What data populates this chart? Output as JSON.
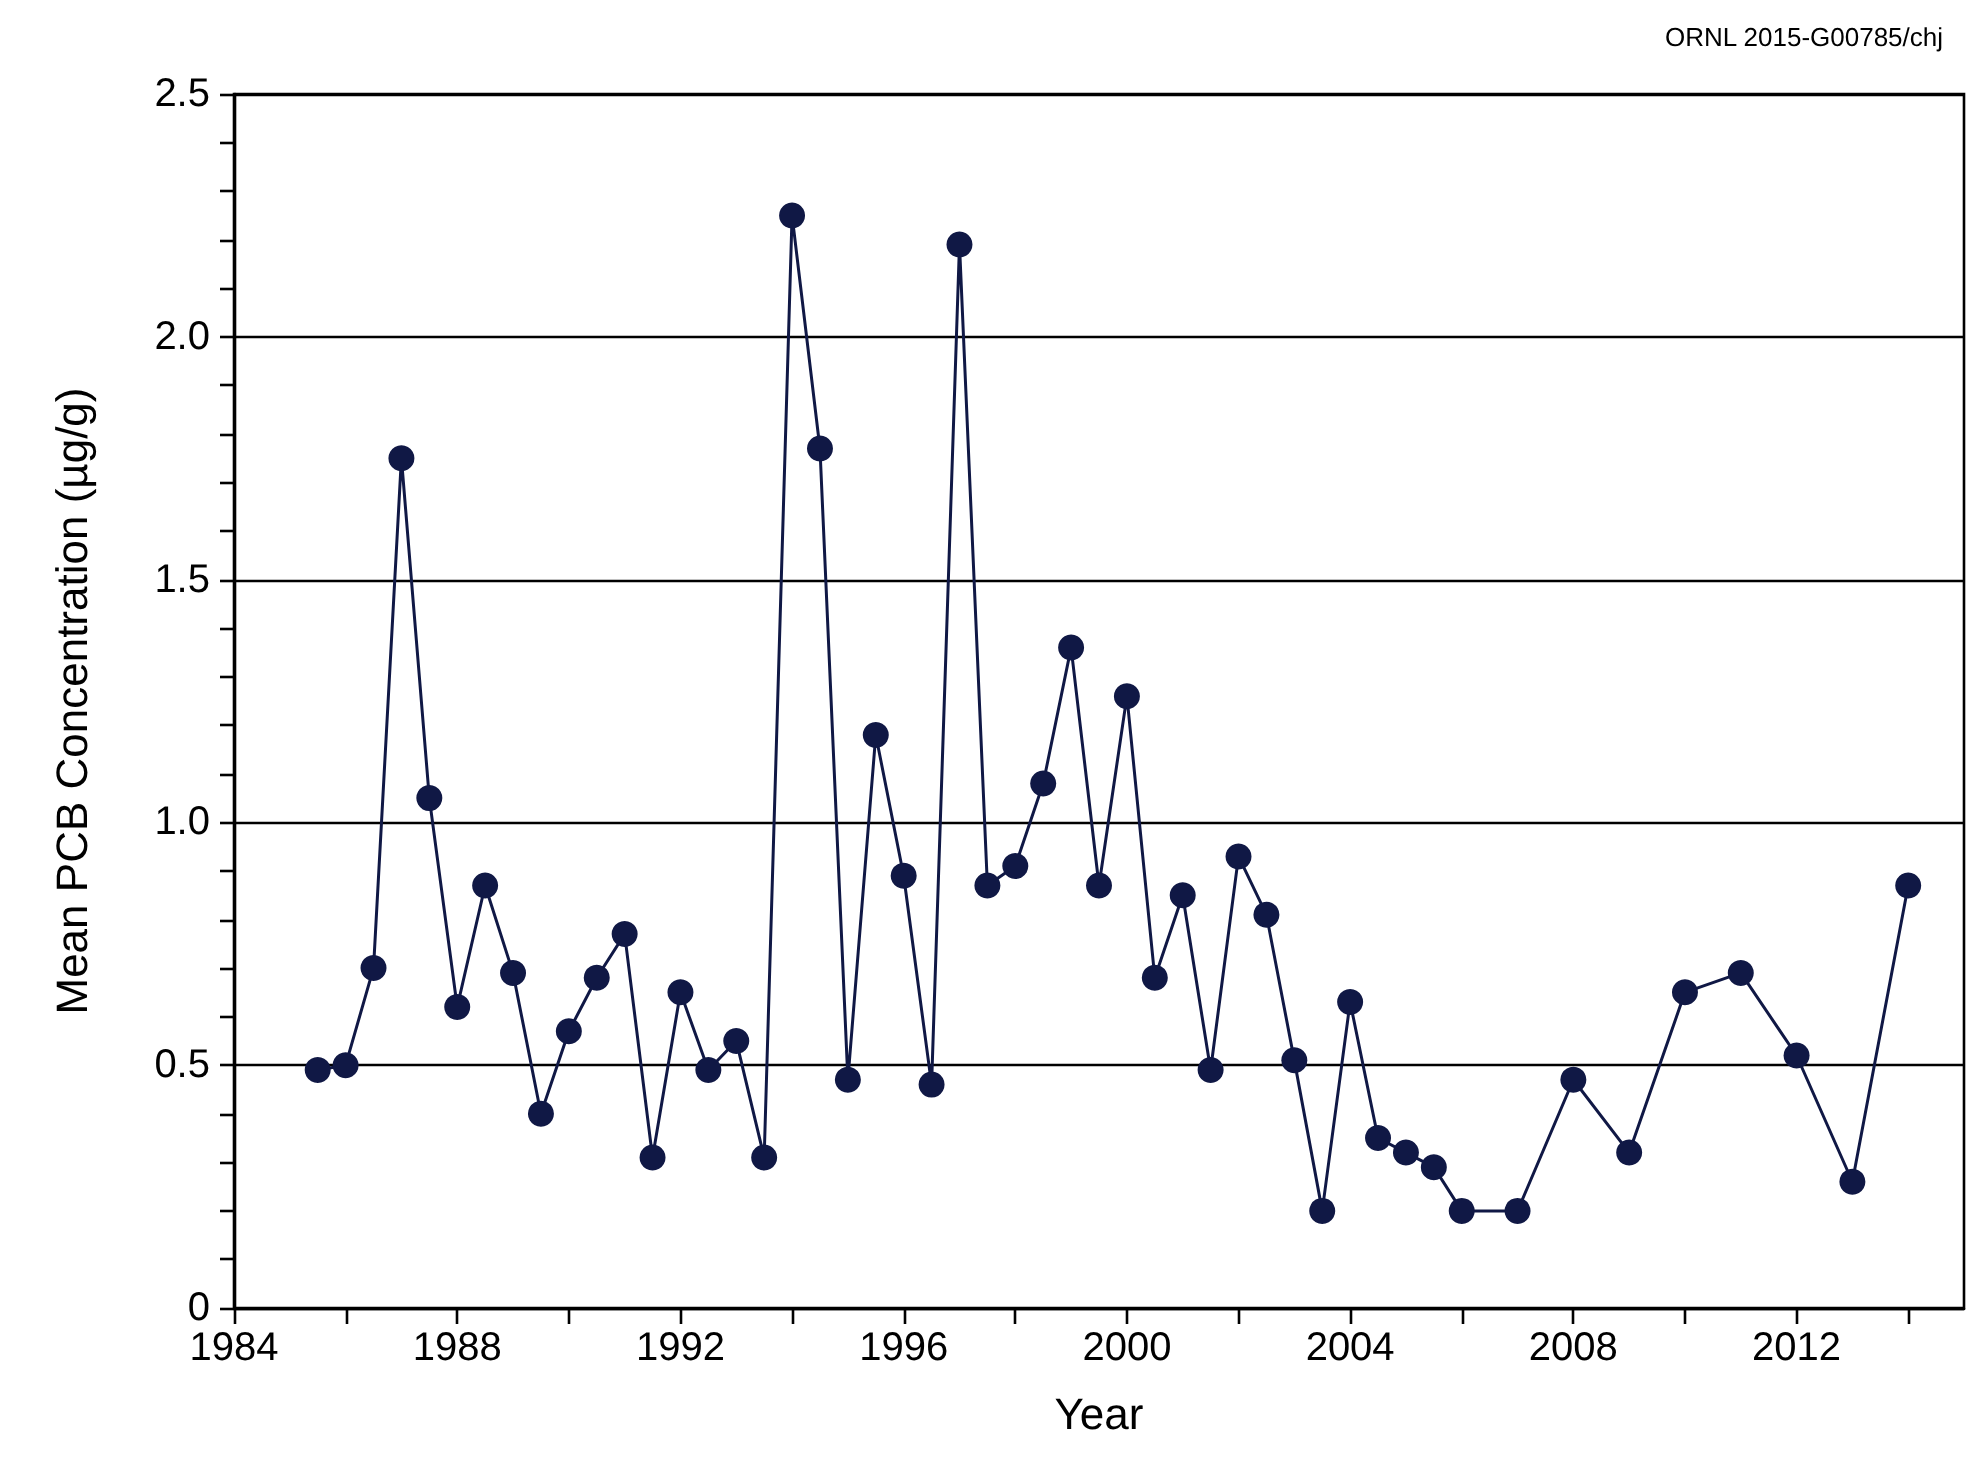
{
  "chart_data": {
    "type": "line",
    "xlabel": "Year",
    "ylabel": "Mean PCB Concentration (µg/g)",
    "annotations": [
      "ORNL 2015-G00785/chj"
    ],
    "x": [
      1985.5,
      1986,
      1986.5,
      1987,
      1987.5,
      1988,
      1988.5,
      1989,
      1989.5,
      1990,
      1990.5,
      1991,
      1991.5,
      1992,
      1992.5,
      1993,
      1993.5,
      1994,
      1994.5,
      1995,
      1995.5,
      1996,
      1996.5,
      1997,
      1997.5,
      1998,
      1998.5,
      1999,
      1999.5,
      2000,
      2000.5,
      2001,
      2001.5,
      2002,
      2002.5,
      2003,
      2003.5,
      2004,
      2004.5,
      2005,
      2005.5,
      2006,
      2007,
      2008,
      2009,
      2010,
      2011,
      2012,
      2013,
      2014
    ],
    "series": [
      {
        "color": "#101845",
        "values": [
          0.49,
          0.5,
          0.7,
          1.75,
          1.05,
          0.62,
          0.87,
          0.69,
          0.4,
          0.57,
          0.68,
          0.77,
          0.31,
          0.65,
          0.49,
          0.55,
          0.31,
          2.25,
          1.77,
          0.47,
          1.18,
          0.89,
          0.46,
          2.19,
          0.87,
          0.91,
          1.08,
          1.36,
          0.87,
          1.26,
          0.68,
          0.85,
          0.49,
          0.93,
          0.81,
          0.51,
          0.2,
          0.63,
          0.35,
          0.32,
          0.29,
          0.2,
          0.2,
          0.47,
          0.32,
          0.65,
          0.69,
          0.52,
          0.26,
          0.87
        ]
      }
    ],
    "xlim": [
      1984,
      2015
    ],
    "xticks": [
      1984,
      {
        "value": 1986,
        "label": null
      },
      1988,
      {
        "value": 1990,
        "label": null
      },
      1992,
      {
        "value": 1994,
        "label": null
      },
      1996,
      {
        "value": 1998,
        "label": null
      },
      2000,
      {
        "value": 2002,
        "label": null
      },
      2004,
      {
        "value": 2006,
        "label": null
      },
      2008,
      {
        "value": 2010,
        "label": null
      },
      2012,
      {
        "value": 2014,
        "label": null
      }
    ],
    "ylim": [
      0,
      2.5
    ],
    "yticks": [
      0,
      {
        "value": 0.1,
        "label": null
      },
      {
        "value": 0.2,
        "label": null
      },
      {
        "value": 0.3,
        "label": null
      },
      {
        "value": 0.4,
        "label": null
      },
      {
        "value": 0.5,
        "label": "0.5"
      },
      {
        "value": 0.6,
        "label": null
      },
      {
        "value": 0.7,
        "label": null
      },
      {
        "value": 0.8,
        "label": null
      },
      {
        "value": 0.9,
        "label": null
      },
      {
        "value": 1,
        "label": "1.0"
      },
      {
        "value": 1.1,
        "label": null
      },
      {
        "value": 1.2,
        "label": null
      },
      {
        "value": 1.3,
        "label": null
      },
      {
        "value": 1.4,
        "label": null
      },
      {
        "value": 1.5,
        "label": "1.5"
      },
      {
        "value": 1.6,
        "label": null
      },
      {
        "value": 1.7,
        "label": null
      },
      {
        "value": 1.8,
        "label": null
      },
      {
        "value": 1.9,
        "label": null
      },
      {
        "value": 2,
        "label": "2.0"
      },
      {
        "value": 2.1,
        "label": null
      },
      {
        "value": 2.2,
        "label": null
      },
      {
        "value": 2.3,
        "label": null
      },
      {
        "value": 2.4,
        "label": null
      },
      {
        "value": 2.5,
        "label": "2.5"
      }
    ],
    "grid": "y",
    "marker": "circle",
    "line_style": "solid"
  }
}
